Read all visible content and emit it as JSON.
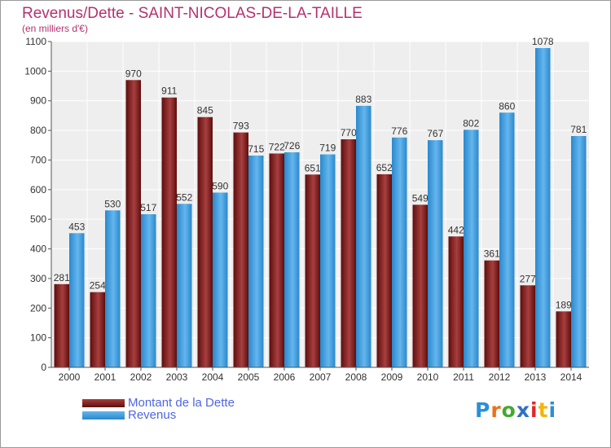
{
  "header": {
    "title": "Revenus/Dette - SAINT-NICOLAS-DE-LA-TAILLE",
    "subtitle": "(en milliers d'€)"
  },
  "legend": {
    "items": [
      {
        "label": "Montant de la Dette",
        "color": "#7a1a1a"
      },
      {
        "label": "Revenus",
        "color": "#3a95d8"
      }
    ]
  },
  "logo": {
    "letters": [
      "P",
      "r",
      "o",
      "x",
      "i",
      "t",
      "i"
    ],
    "colors": [
      "#2b8fd6",
      "#e8731e",
      "#46a832",
      "#3070c8",
      "#e3262a",
      "#f2b50f",
      "#2b8fd6"
    ]
  },
  "colors": {
    "title": "#b4316f",
    "debt_dark": "#5e0d0d",
    "debt_light": "#a83f3f",
    "revenue_dark": "#2a88cc",
    "revenue_light": "#64b6ee",
    "plot_bg": "#eeeeee",
    "grid": "#ffffff"
  },
  "chart_data": {
    "type": "bar",
    "title": "Revenus/Dette - SAINT-NICOLAS-DE-LA-TAILLE",
    "subtitle": "(en milliers d'€)",
    "xlabel": "",
    "ylabel": "",
    "ylim": [
      0,
      1100
    ],
    "yticks": [
      0,
      100,
      200,
      300,
      400,
      500,
      600,
      700,
      800,
      900,
      1000,
      1100
    ],
    "grid": true,
    "legend_position": "bottom-left",
    "categories": [
      "2000",
      "2001",
      "2002",
      "2003",
      "2004",
      "2005",
      "2006",
      "2007",
      "2008",
      "2009",
      "2010",
      "2011",
      "2012",
      "2013",
      "2014"
    ],
    "series": [
      {
        "name": "Montant de la Dette",
        "values": [
          281,
          254,
          970,
          911,
          845,
          793,
          722,
          651,
          770,
          652,
          549,
          442,
          361,
          277,
          189
        ]
      },
      {
        "name": "Revenus",
        "values": [
          453,
          530,
          517,
          552,
          590,
          715,
          726,
          719,
          883,
          776,
          767,
          802,
          860,
          1078,
          781
        ]
      }
    ]
  }
}
